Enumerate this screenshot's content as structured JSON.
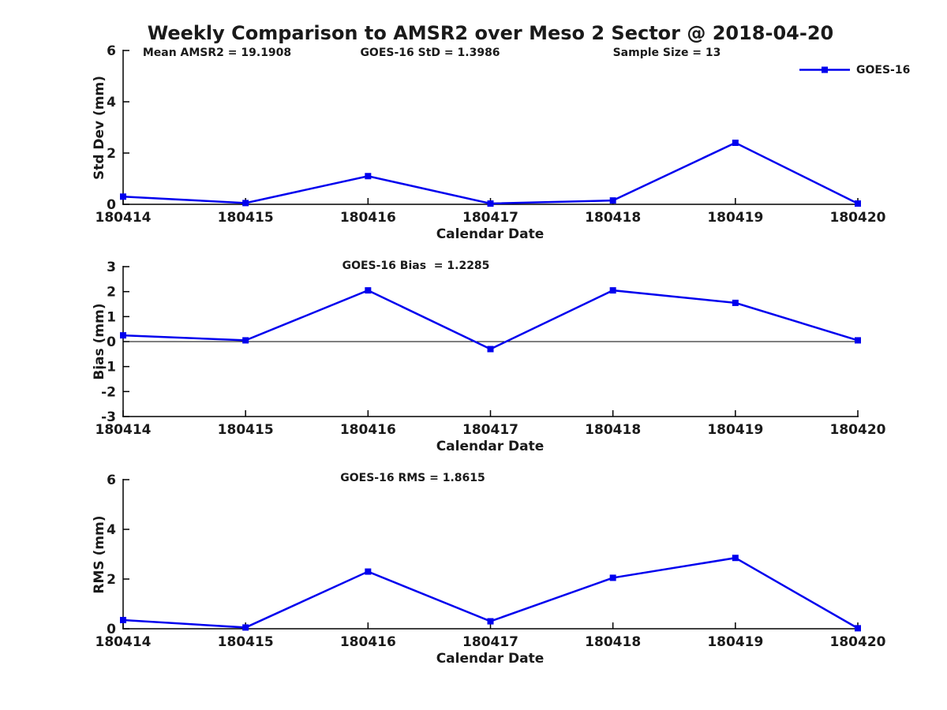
{
  "title": "Weekly Comparison to AMSR2 over Meso 2 Sector @ 2018-04-20",
  "legend": {
    "label": "GOES-16"
  },
  "colors": {
    "line": "#0000EE",
    "text": "#1a1a1a",
    "axis": "#000000"
  },
  "chart_data": [
    {
      "type": "line",
      "panel": "std-dev",
      "categories": [
        "180414",
        "180415",
        "180416",
        "180417",
        "180418",
        "180419",
        "180420"
      ],
      "series": [
        {
          "name": "GOES-16",
          "values": [
            0.3,
            0.05,
            1.1,
            0.03,
            0.15,
            2.4,
            0.03
          ]
        }
      ],
      "xlabel": "Calendar Date",
      "ylabel": "Std Dev (mm)",
      "ylim": [
        0,
        6
      ],
      "yticks": [
        0,
        2,
        4,
        6
      ],
      "grid": false,
      "legend_position": "top-right",
      "annotations": [
        "Mean AMSR2 = 19.1908",
        "GOES-16 StD = 1.3986",
        "Sample Size = 13"
      ]
    },
    {
      "type": "line",
      "panel": "bias",
      "categories": [
        "180414",
        "180415",
        "180416",
        "180417",
        "180418",
        "180419",
        "180420"
      ],
      "series": [
        {
          "name": "GOES-16",
          "values": [
            0.25,
            0.05,
            2.05,
            -0.3,
            2.05,
            1.55,
            0.05
          ]
        }
      ],
      "xlabel": "Calendar Date",
      "ylabel": "Bias (mm)",
      "ylim": [
        -3,
        3
      ],
      "yticks": [
        -3,
        -2,
        -1,
        0,
        1,
        2,
        3
      ],
      "grid": false,
      "zero_line": true,
      "annotations": [
        "GOES-16 Bias  = 1.2285"
      ]
    },
    {
      "type": "line",
      "panel": "rms",
      "categories": [
        "180414",
        "180415",
        "180416",
        "180417",
        "180418",
        "180419",
        "180420"
      ],
      "series": [
        {
          "name": "GOES-16",
          "values": [
            0.35,
            0.05,
            2.3,
            0.3,
            2.05,
            2.85,
            0.02
          ]
        }
      ],
      "xlabel": "Calendar Date",
      "ylabel": "RMS (mm)",
      "ylim": [
        0,
        6
      ],
      "yticks": [
        0,
        2,
        4,
        6
      ],
      "grid": false,
      "annotations": [
        "GOES-16 RMS = 1.8615"
      ]
    }
  ]
}
